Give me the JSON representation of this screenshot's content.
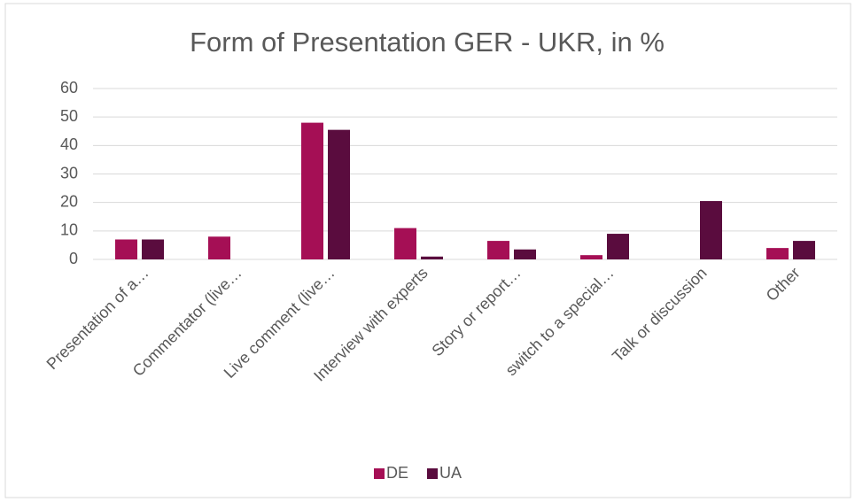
{
  "chart_data": {
    "type": "bar",
    "title": "Form of Presentation GER - UKR, in %",
    "categories": [
      "Presentation of a…",
      "Commentator (live…",
      "Live comment (live…",
      "Interview with experts",
      "Story or report…",
      "switch to a special…",
      "Talk or discussion",
      "Other"
    ],
    "series": [
      {
        "name": "DE",
        "color": "#a50f55",
        "values": [
          7,
          8,
          48,
          11,
          6.5,
          1.5,
          null,
          4
        ]
      },
      {
        "name": "UA",
        "color": "#5a0c3e",
        "values": [
          7,
          null,
          45.5,
          1,
          3.5,
          9,
          20.5,
          6.5
        ]
      }
    ],
    "ylim": [
      0,
      60
    ],
    "yticks": [
      0,
      10,
      20,
      30,
      40,
      50,
      60
    ],
    "grid": true,
    "legend": "bottom"
  }
}
